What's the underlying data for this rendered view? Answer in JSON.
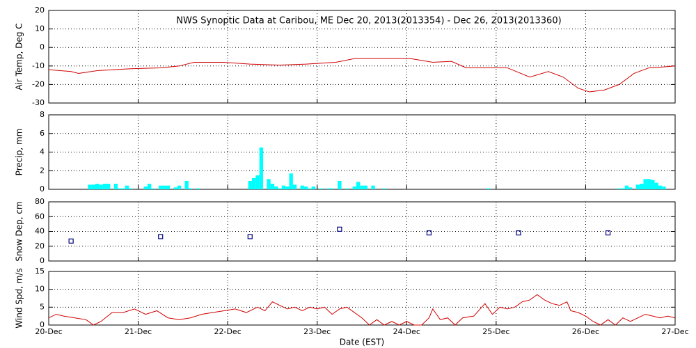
{
  "chart_data": [
    {
      "type": "line",
      "title": "NWS Synoptic Data at Caribou, ME   Dec 20, 2013(2013354) - Dec 26, 2013(2013360)",
      "ylabel": "Air Temp, Deg C",
      "color": "#d00000",
      "grid": true,
      "xlim": [
        0,
        168
      ],
      "ylim": [
        -30,
        20
      ],
      "yticks": [
        -30,
        -20,
        -10,
        0,
        10,
        20
      ],
      "x": [
        0,
        6,
        8,
        13,
        22,
        30,
        35,
        39,
        47,
        54,
        62,
        69,
        77,
        82,
        97,
        103,
        108,
        112,
        118,
        123,
        129,
        134,
        138,
        142,
        145,
        149,
        153,
        157,
        161,
        165,
        168
      ],
      "values": [
        -12,
        -13,
        -14,
        -12.5,
        -11.5,
        -11,
        -10,
        -8,
        -8,
        -9,
        -9.5,
        -9,
        -8,
        -6,
        -6,
        -8,
        -7.5,
        -11,
        -11,
        -11,
        -16,
        -13,
        -16,
        -22,
        -24,
        -23,
        -20,
        -14,
        -11,
        -10.5,
        -10
      ]
    },
    {
      "type": "bar",
      "ylabel": "Precip, mm",
      "color": "#00ffff",
      "grid": true,
      "xlim": [
        0,
        168
      ],
      "ylim": [
        0,
        8
      ],
      "yticks": [
        0,
        2,
        4,
        6,
        8
      ],
      "x": [
        11,
        12,
        13,
        14,
        15,
        16,
        18,
        19,
        20,
        21,
        22,
        26,
        27,
        28,
        30,
        31,
        32,
        34,
        35,
        37,
        38,
        40,
        54,
        55,
        56,
        57,
        59,
        60,
        61,
        62,
        63,
        64,
        65,
        66,
        68,
        69,
        70,
        71,
        73,
        75,
        76,
        78,
        80,
        82,
        83,
        84,
        85,
        87,
        90,
        118,
        153,
        154,
        155,
        156,
        158,
        159,
        160,
        161,
        162,
        163,
        164,
        165
      ],
      "values": [
        0.5,
        0.5,
        0.6,
        0.5,
        0.6,
        0.6,
        0.6,
        0.1,
        0.1,
        0.4,
        0.1,
        0.3,
        0.6,
        0.1,
        0.4,
        0.4,
        0.4,
        0.2,
        0.4,
        0.9,
        0.1,
        0.1,
        0.9,
        1.2,
        1.5,
        4.5,
        1.1,
        0.6,
        0.3,
        0.1,
        0.4,
        0.3,
        1.7,
        0.5,
        0.4,
        0.3,
        0.1,
        0.3,
        0.1,
        0.1,
        0.1,
        0.9,
        0.1,
        0.3,
        0.8,
        0.4,
        0.4,
        0.4,
        0.1,
        0.1,
        0.1,
        0.1,
        0.4,
        0.2,
        0.5,
        0.6,
        1.1,
        1.1,
        1.0,
        0.7,
        0.4,
        0.3
      ]
    },
    {
      "type": "scatter",
      "ylabel": "Snow Dep, cm",
      "color": "#000080",
      "grid": true,
      "xlim": [
        0,
        168
      ],
      "ylim": [
        0,
        80
      ],
      "yticks": [
        0,
        20,
        40,
        60,
        80
      ],
      "x": [
        6,
        30,
        54,
        78,
        102,
        126,
        150
      ],
      "values": [
        27,
        33,
        33,
        43,
        38,
        38,
        38
      ]
    },
    {
      "type": "line",
      "ylabel": "Wind Spd, m/s",
      "xlabel": "Date (EST)",
      "color": "#d00000",
      "grid": true,
      "xlim": [
        0,
        168
      ],
      "ylim": [
        0,
        15
      ],
      "yticks": [
        0,
        5,
        10,
        15
      ],
      "xticks": [
        {
          "value": 0,
          "label": "20-Dec"
        },
        {
          "value": 24,
          "label": "21-Dec"
        },
        {
          "value": 48,
          "label": "22-Dec"
        },
        {
          "value": 72,
          "label": "23-Dec"
        },
        {
          "value": 96,
          "label": "24-Dec"
        },
        {
          "value": 120,
          "label": "25-Dec"
        },
        {
          "value": 144,
          "label": "26-Dec"
        },
        {
          "value": 168,
          "label": "27-Dec"
        }
      ],
      "x": [
        0,
        2,
        4,
        7,
        10,
        12,
        14,
        17,
        20,
        23,
        26,
        29,
        32,
        35,
        38,
        41,
        44,
        47,
        50,
        53,
        56,
        58,
        60,
        62,
        64,
        66,
        68,
        70,
        72,
        74,
        76,
        78,
        80,
        82,
        84,
        86,
        88,
        90,
        92,
        94,
        96,
        98,
        100,
        102,
        103,
        105,
        107,
        109,
        111,
        114,
        117,
        119,
        121,
        123,
        125,
        127,
        129,
        131,
        133,
        135,
        137,
        139,
        140,
        142,
        144,
        146,
        148,
        150,
        152,
        154,
        156,
        158,
        160,
        162,
        164,
        166,
        168
      ],
      "values": [
        2,
        3,
        2.5,
        2,
        1.5,
        0,
        1,
        3.5,
        3.5,
        4.5,
        3,
        4,
        2,
        1.5,
        2,
        3,
        3.5,
        4,
        4.5,
        3.5,
        5,
        4,
        6.5,
        5.5,
        4.5,
        5,
        4,
        5,
        4.5,
        5,
        3,
        4.5,
        5,
        3.5,
        2,
        0,
        1.5,
        0,
        1,
        0,
        1,
        0,
        0,
        2,
        4.5,
        1.5,
        2,
        0,
        2,
        2.5,
        6,
        3,
        5,
        4.5,
        5,
        6.5,
        7,
        8.5,
        7,
        6,
        5.5,
        6.5,
        4,
        3.5,
        2.5,
        1,
        0,
        1.5,
        0,
        2,
        1,
        2,
        3,
        2.5,
        2,
        2.5,
        2
      ]
    }
  ]
}
